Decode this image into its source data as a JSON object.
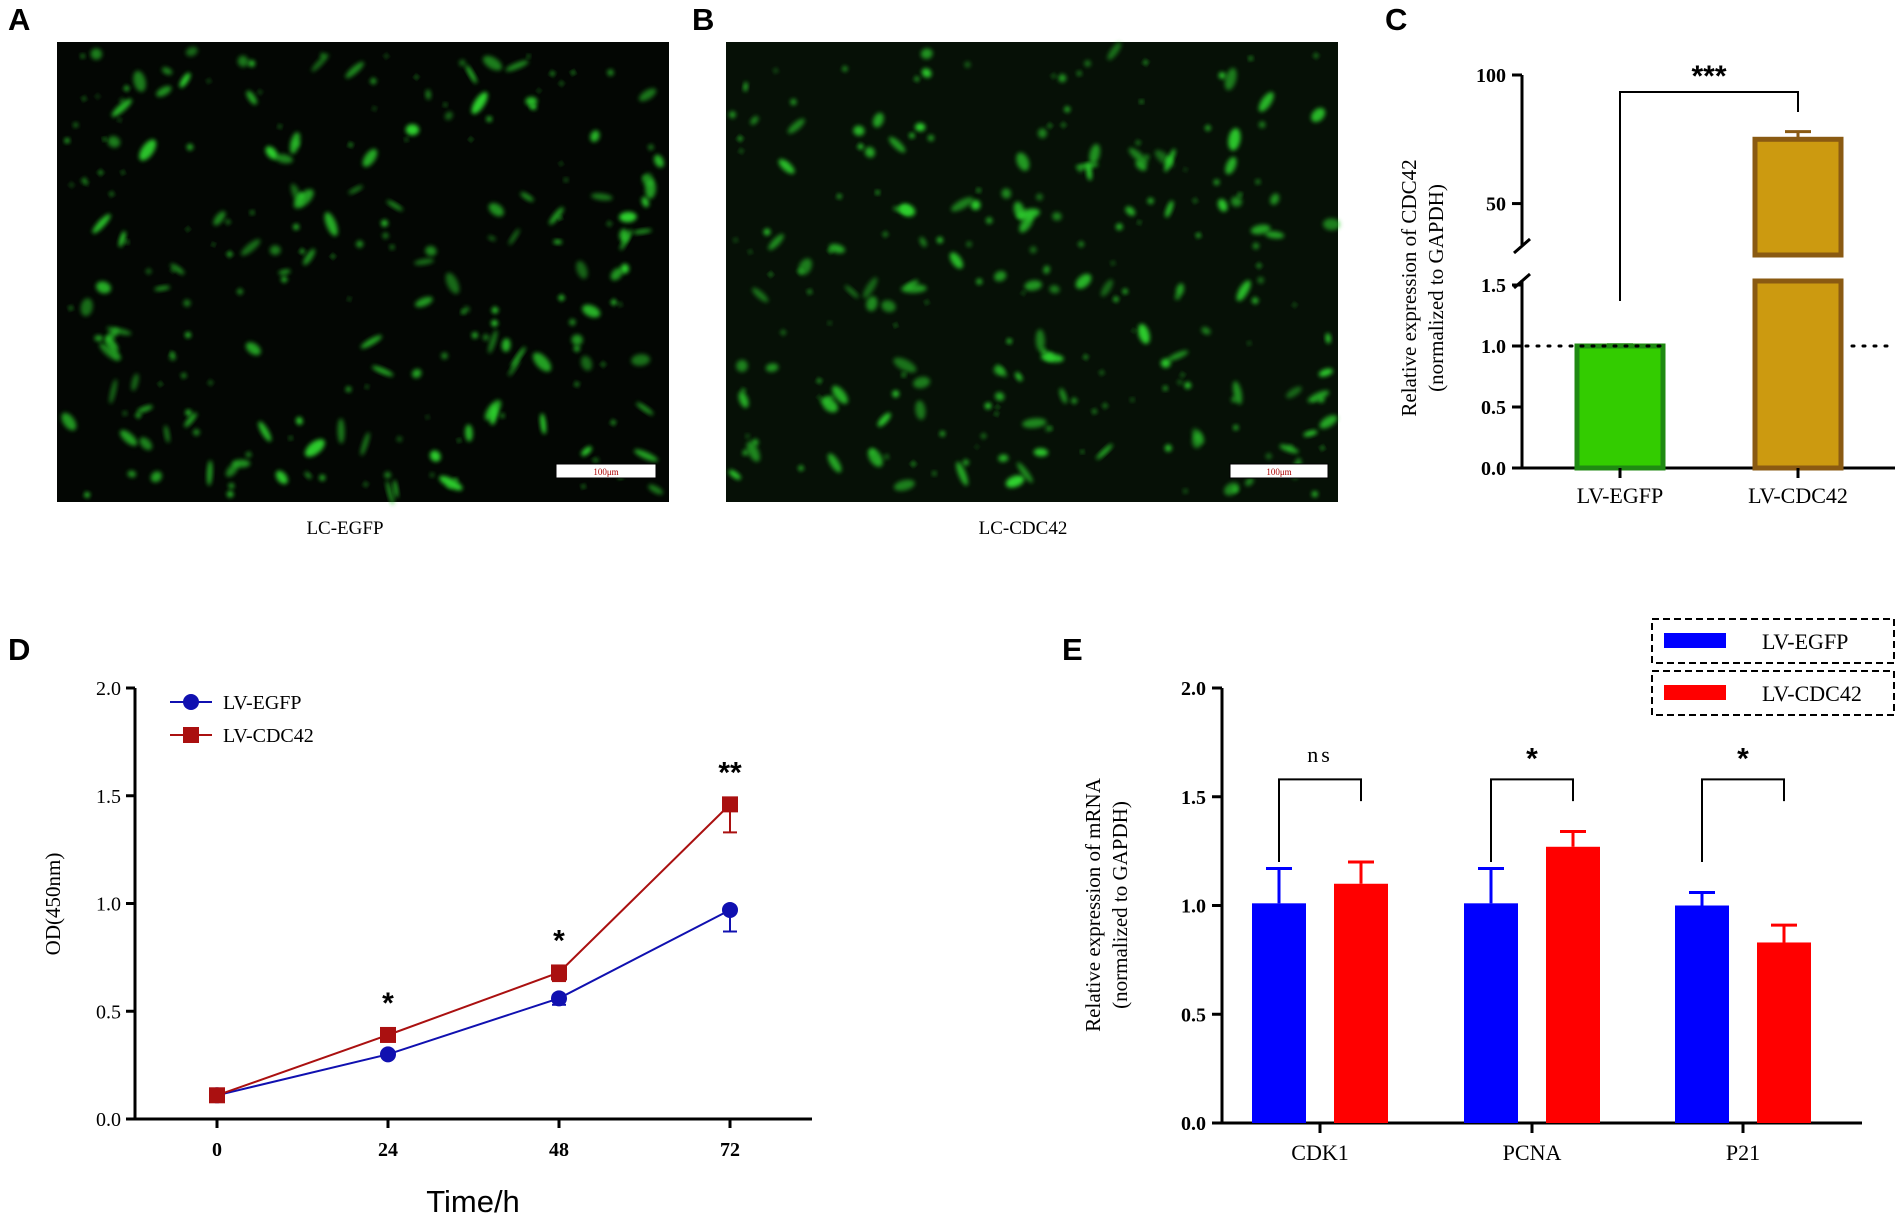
{
  "panels": {
    "A": {
      "label": "A",
      "caption": "LC-EGFP",
      "scalebar": "100μm"
    },
    "B": {
      "label": "B",
      "caption": "LC-CDC42",
      "scalebar": "100μm"
    },
    "C": {
      "label": "C"
    },
    "D": {
      "label": "D"
    },
    "E": {
      "label": "E"
    }
  },
  "colors": {
    "micrograph_bg": "#030603",
    "cell_green": "#2fd12f",
    "egfp_bar": "#33cc00",
    "egfp_edge": "#1f8a12",
    "cdc42_bar": "#cc9a10",
    "cdc42_edge": "#8a5a12",
    "line_egfp": "#1010b0",
    "line_cdc42": "#aa1010",
    "bar_blue": "#0000ff",
    "bar_red": "#ff0000"
  },
  "chart_data": [
    {
      "id": "C",
      "type": "bar",
      "categories": [
        "LV-EGFP",
        "LV-CDC42"
      ],
      "values": [
        1.0,
        75
      ],
      "errors": [
        0.01,
        3
      ],
      "ylabel_line1": "Relative expression of CDC42",
      "ylabel_line2": "(normalized to GAPDH)",
      "ylim_lower": [
        0,
        1.5
      ],
      "ylim_upper": [
        30,
        100
      ],
      "axis_break": true,
      "yticks_lower": [
        "0.0",
        "0.5",
        "1.0",
        "1.5"
      ],
      "yticks_upper": [
        "50",
        "100"
      ],
      "reference_line": 1.0,
      "significance": "***"
    },
    {
      "id": "D",
      "type": "line",
      "x": [
        0,
        24,
        48,
        72
      ],
      "xticks": [
        "0",
        "24",
        "48",
        "72"
      ],
      "series": [
        {
          "name": "LV-EGFP",
          "marker": "circle",
          "values": [
            0.11,
            0.3,
            0.56,
            0.97
          ],
          "errors": [
            0.01,
            0.01,
            0.03,
            0.1
          ]
        },
        {
          "name": "LV-CDC42",
          "marker": "square",
          "values": [
            0.11,
            0.39,
            0.68,
            1.46
          ],
          "errors": [
            0.01,
            0.01,
            0.04,
            0.13
          ]
        }
      ],
      "xlabel": "Time/h",
      "ylabel": "OD(450nm)",
      "ylim": [
        0,
        2.0
      ],
      "yticks": [
        "0.0",
        "0.5",
        "1.0",
        "1.5",
        "2.0"
      ],
      "significance": [
        "",
        "*",
        "*",
        "**"
      ],
      "legend": "top-left"
    },
    {
      "id": "E",
      "type": "bar",
      "categories": [
        "CDK1",
        "PCNA",
        "P21"
      ],
      "series": [
        {
          "name": "LV-EGFP",
          "values": [
            1.01,
            1.01,
            1.0
          ],
          "errors": [
            0.16,
            0.16,
            0.06
          ]
        },
        {
          "name": "LV-CDC42",
          "values": [
            1.1,
            1.27,
            0.83
          ],
          "errors": [
            0.1,
            0.07,
            0.08
          ]
        }
      ],
      "ylabel_line1": "Relative expression of mRNA",
      "ylabel_line2": "(normalized to GAPDH)",
      "ylim": [
        0,
        2.0
      ],
      "yticks": [
        "0.0",
        "0.5",
        "1.0",
        "1.5",
        "2.0"
      ],
      "significance": [
        "ns",
        "*",
        "*"
      ],
      "legend": "top-right"
    }
  ]
}
